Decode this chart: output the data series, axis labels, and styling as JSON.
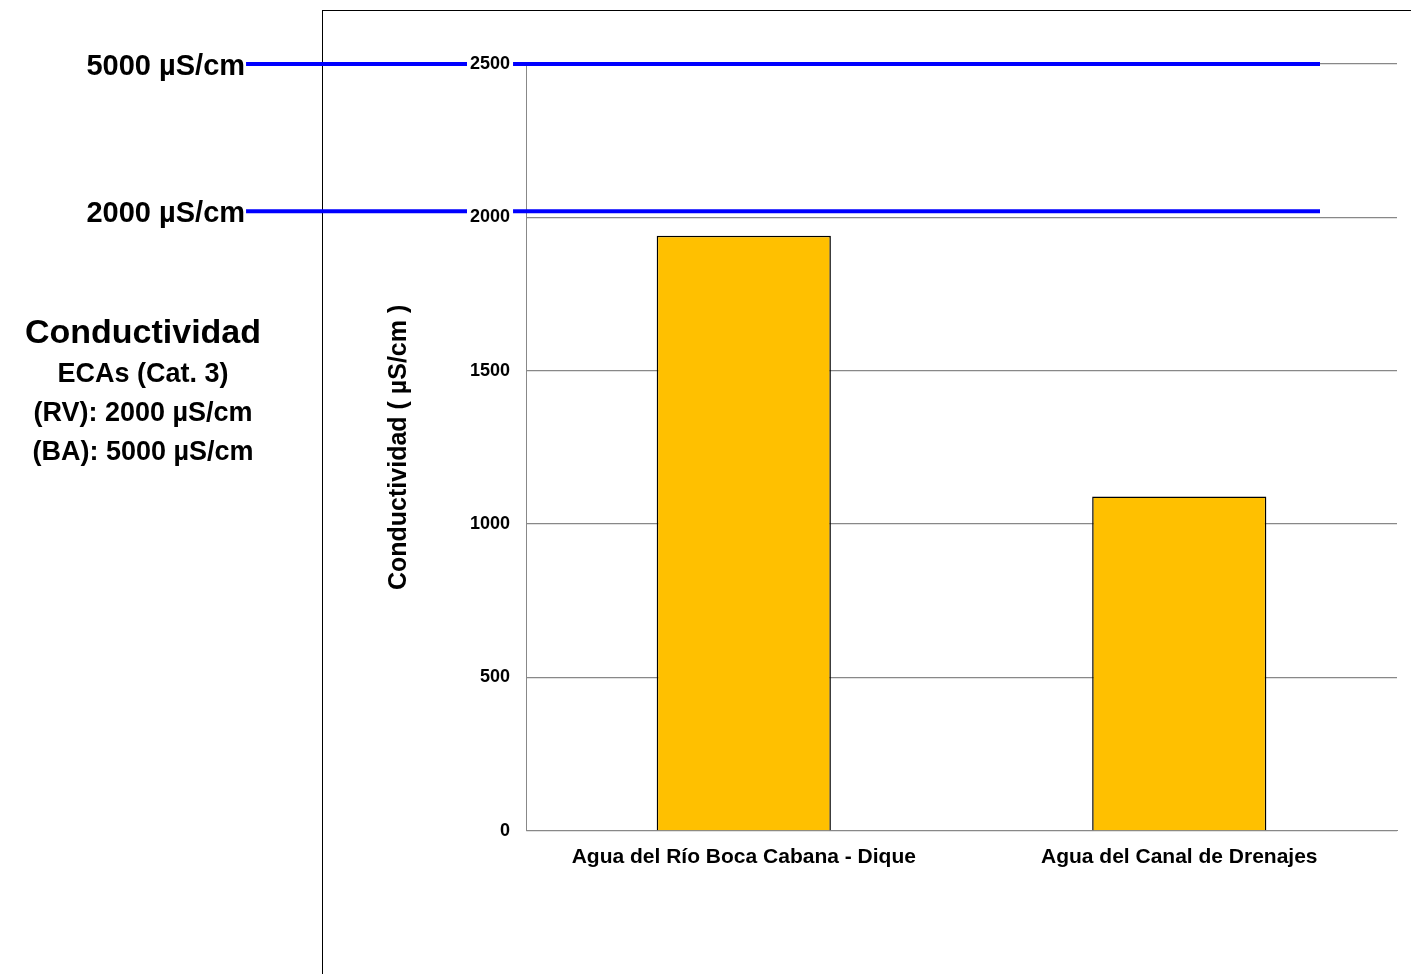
{
  "chart_data": {
    "type": "bar",
    "title": "Conductividad",
    "ylabel": "Conductividad ( µS/cm )",
    "categories": [
      "Agua del Río Boca Cabana - Dique",
      "Agua del Canal de Drenajes"
    ],
    "values": [
      1940,
      1090
    ],
    "color": "#ffc000",
    "ylim": [
      0,
      2500
    ],
    "yticks": [
      0,
      500,
      1000,
      1500,
      2000,
      2500
    ],
    "grid": "y",
    "legend": false,
    "ref_lines": [
      {
        "axis": "y",
        "value": 2500,
        "label": "5000 µS/cm",
        "color": "#0000ff"
      },
      {
        "axis": "y",
        "value": 2020,
        "label": "2000 µS/cm",
        "color": "#0000ff"
      }
    ],
    "annotations": [
      "ECAs (Cat. 3)",
      "(RV): 2000 µS/cm",
      "(BA): 5000 µS/cm"
    ]
  }
}
